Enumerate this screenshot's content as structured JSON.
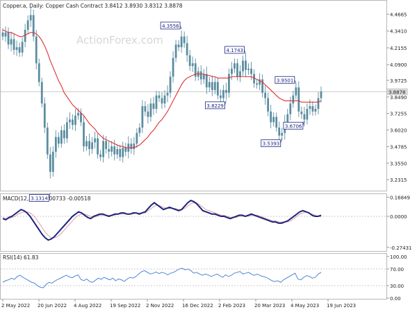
{
  "header": {
    "main_title": "Copper.a, Daily:  Copper Cash Contract  3.8412 3.8930 3.8312 3.8878",
    "macd_title": "MACD(12,26,9) 0.00733 -0.00518",
    "rsi_title": "RSI(14) 61.83",
    "watermark": "ActionForex.com"
  },
  "colors": {
    "candle": "#5a8ca0",
    "ma": "#e03030",
    "macd_line": "#1a237e",
    "macd_signal": "#e0a0a0",
    "rsi": "#3a7ad0",
    "grid": "#c8c8c8",
    "frame": "#b8b8b8",
    "label_box": "#1a237e"
  },
  "chart_data": [
    {
      "type": "candlestick",
      "title": "Copper.a, Daily:  Copper Cash Contract  3.8412 3.8930 3.8312 3.8878",
      "x_tick_labels": [
        "2 May 2022",
        "20 Jun 2022",
        "4 Aug 2022",
        "19 Sep 2022",
        "2 Nov 2022",
        "16 Dec 2022",
        "2 Feb 2023",
        "20 Mar 2023",
        "4 May 2023",
        "19 Jun 2023"
      ],
      "y_tick_labels": [
        "4.4665",
        "4.3410",
        "4.2155",
        "4.0900",
        "3.9725",
        "3.8490",
        "3.7255",
        "3.6020",
        "3.4785",
        "3.3550",
        "3.2315"
      ],
      "ylim": [
        3.17,
        4.5
      ],
      "current_price_label": "3.8878",
      "current_price": 3.8878,
      "swing_labels": [
        {
          "text": "3.1314",
          "value": 3.1314,
          "index": 17
        },
        {
          "text": "4.3556",
          "value": 4.3556,
          "index": 64
        },
        {
          "text": "4.1743",
          "value": 4.1743,
          "index": 87
        },
        {
          "text": "3.8229",
          "value": 3.8229,
          "index": 80
        },
        {
          "text": "3.5393",
          "value": 3.5393,
          "index": 100
        },
        {
          "text": "3.9501",
          "value": 3.9501,
          "index": 105
        },
        {
          "text": "3.6706",
          "value": 3.6706,
          "index": 108
        }
      ],
      "close": [
        4.3,
        4.33,
        4.24,
        4.28,
        4.2,
        4.22,
        4.18,
        4.26,
        4.35,
        4.42,
        4.46,
        4.3,
        4.1,
        3.96,
        3.8,
        3.62,
        3.42,
        3.29,
        3.44,
        3.55,
        3.5,
        3.6,
        3.54,
        3.66,
        3.68,
        3.64,
        3.71,
        3.73,
        3.66,
        3.48,
        3.52,
        3.46,
        3.51,
        3.54,
        3.42,
        3.4,
        3.52,
        3.46,
        3.44,
        3.48,
        3.42,
        3.46,
        3.4,
        3.47,
        3.44,
        3.5,
        3.46,
        3.5,
        3.58,
        3.62,
        3.78,
        3.74,
        3.7,
        3.8,
        3.76,
        3.86,
        3.84,
        3.8,
        3.86,
        3.88,
        4.0,
        4.14,
        4.24,
        4.22,
        4.3,
        4.25,
        4.16,
        4.08,
        4.1,
        4.0,
        4.04,
        3.98,
        4.02,
        3.92,
        3.96,
        3.9,
        3.96,
        3.86,
        3.84,
        3.9,
        3.88,
        4.02,
        4.06,
        4.1,
        4.0,
        4.04,
        4.12,
        4.05,
        4.06,
        4.02,
        3.95,
        3.94,
        3.98,
        3.88,
        3.84,
        3.74,
        3.66,
        3.7,
        3.62,
        3.56,
        3.58,
        3.66,
        3.72,
        3.8,
        3.86,
        3.92,
        3.74,
        3.72,
        3.68,
        3.76,
        3.78,
        3.74,
        3.76,
        3.84,
        3.89
      ],
      "ma": [
        4.35,
        4.34,
        4.33,
        4.33,
        4.32,
        4.31,
        4.3,
        4.3,
        4.31,
        4.32,
        4.33,
        4.33,
        4.32,
        4.3,
        4.27,
        4.23,
        4.18,
        4.12,
        4.07,
        4.02,
        3.97,
        3.93,
        3.88,
        3.85,
        3.82,
        3.79,
        3.77,
        3.75,
        3.73,
        3.71,
        3.68,
        3.65,
        3.63,
        3.61,
        3.58,
        3.56,
        3.54,
        3.53,
        3.52,
        3.51,
        3.5,
        3.49,
        3.48,
        3.48,
        3.47,
        3.47,
        3.47,
        3.47,
        3.48,
        3.49,
        3.51,
        3.53,
        3.55,
        3.58,
        3.6,
        3.63,
        3.66,
        3.68,
        3.71,
        3.74,
        3.78,
        3.82,
        3.86,
        3.9,
        3.94,
        3.97,
        3.99,
        4.0,
        4.01,
        4.02,
        4.02,
        4.02,
        4.02,
        4.01,
        4.01,
        4.0,
        4.0,
        3.99,
        3.99,
        3.99,
        3.99,
        3.99,
        4.0,
        4.0,
        4.0,
        4.0,
        4.0,
        4.0,
        4.0,
        4.0,
        3.99,
        3.98,
        3.97,
        3.96,
        3.94,
        3.92,
        3.9,
        3.88,
        3.86,
        3.84,
        3.83,
        3.82,
        3.82,
        3.82,
        3.82,
        3.82,
        3.82,
        3.81,
        3.81,
        3.81,
        3.81,
        3.81,
        3.81,
        3.81,
        3.82
      ]
    },
    {
      "type": "line",
      "title": "MACD(12,26,9) 0.00733 -0.00518",
      "y_tick_labels": [
        "0.16849",
        "0.0000",
        "-0.27431"
      ],
      "ylim": [
        -0.3,
        0.19
      ],
      "series": [
        {
          "values": [
            -0.02,
            -0.03,
            -0.01,
            0.0,
            0.02,
            0.04,
            0.06,
            0.05,
            0.03,
            0.0,
            -0.04,
            -0.08,
            -0.12,
            -0.16,
            -0.19,
            -0.21,
            -0.2,
            -0.18,
            -0.15,
            -0.12,
            -0.09,
            -0.06,
            -0.03,
            0.0,
            0.02,
            0.04,
            0.03,
            0.01,
            -0.01,
            -0.02,
            0.0,
            0.01,
            0.02,
            0.02,
            0.01,
            0.0,
            0.01,
            0.02,
            0.02,
            0.03,
            0.03,
            0.02,
            0.02,
            0.03,
            0.03,
            0.02,
            0.03,
            0.04,
            0.07,
            0.1,
            0.12,
            0.1,
            0.08,
            0.06,
            0.07,
            0.08,
            0.07,
            0.06,
            0.05,
            0.06,
            0.09,
            0.12,
            0.14,
            0.13,
            0.11,
            0.08,
            0.05,
            0.04,
            0.03,
            0.02,
            0.02,
            0.01,
            0.0,
            0.0,
            -0.01,
            -0.02,
            -0.01,
            0.0,
            0.01,
            0.01,
            0.0,
            0.01,
            0.02,
            0.01,
            0.0,
            -0.01,
            -0.02,
            -0.03,
            -0.04,
            -0.05,
            -0.05,
            -0.06,
            -0.06,
            -0.05,
            -0.04,
            -0.02,
            0.0,
            0.02,
            0.04,
            0.05,
            0.04,
            0.03,
            0.01,
            0.0,
            0.0,
            0.01
          ]
        },
        {
          "values": [
            -0.01,
            -0.02,
            -0.02,
            -0.01,
            0.0,
            0.02,
            0.03,
            0.04,
            0.04,
            0.03,
            0.01,
            -0.02,
            -0.06,
            -0.1,
            -0.14,
            -0.17,
            -0.19,
            -0.19,
            -0.18,
            -0.16,
            -0.13,
            -0.1,
            -0.07,
            -0.04,
            -0.01,
            0.01,
            0.02,
            0.02,
            0.01,
            0.0,
            -0.01,
            0.0,
            0.01,
            0.01,
            0.01,
            0.01,
            0.01,
            0.01,
            0.02,
            0.02,
            0.02,
            0.02,
            0.02,
            0.02,
            0.03,
            0.03,
            0.03,
            0.03,
            0.05,
            0.07,
            0.09,
            0.1,
            0.09,
            0.08,
            0.07,
            0.07,
            0.07,
            0.07,
            0.06,
            0.06,
            0.07,
            0.09,
            0.11,
            0.12,
            0.12,
            0.1,
            0.08,
            0.06,
            0.05,
            0.04,
            0.03,
            0.02,
            0.01,
            0.01,
            0.0,
            -0.01,
            -0.01,
            -0.01,
            0.0,
            0.0,
            0.0,
            0.0,
            0.01,
            0.01,
            0.01,
            0.0,
            -0.01,
            -0.02,
            -0.03,
            -0.04,
            -0.04,
            -0.05,
            -0.05,
            -0.05,
            -0.05,
            -0.04,
            -0.02,
            0.0,
            0.02,
            0.03,
            0.04,
            0.03,
            0.02,
            0.01,
            0.0,
            -0.005
          ]
        }
      ]
    },
    {
      "type": "line",
      "title": "RSI(14) 61.83",
      "y_tick_labels": [
        "100.00",
        "70.00",
        "30.00",
        "0.00"
      ],
      "ylim": [
        0,
        100
      ],
      "guide_levels": [
        70,
        30
      ],
      "series": [
        {
          "values": [
            38,
            42,
            44,
            48,
            45,
            52,
            55,
            50,
            46,
            42,
            38,
            36,
            30,
            26,
            25,
            33,
            38,
            36,
            41,
            45,
            48,
            52,
            55,
            51,
            49,
            53,
            56,
            45,
            42,
            46,
            40,
            38,
            43,
            48,
            45,
            50,
            47,
            44,
            48,
            42,
            46,
            44,
            40,
            46,
            50,
            48,
            52,
            58,
            64,
            66,
            62,
            58,
            60,
            63,
            59,
            62,
            60,
            56,
            60,
            62,
            66,
            70,
            72,
            68,
            70,
            66,
            60,
            62,
            58,
            55,
            58,
            56,
            52,
            55,
            58,
            54,
            50,
            56,
            52,
            55,
            60,
            62,
            64,
            58,
            60,
            62,
            57,
            55,
            58,
            54,
            52,
            50,
            46,
            42,
            40,
            42,
            38,
            44,
            48,
            52,
            56,
            60,
            46,
            44,
            50,
            54,
            52,
            48,
            50,
            58,
            62
          ]
        }
      ]
    }
  ]
}
